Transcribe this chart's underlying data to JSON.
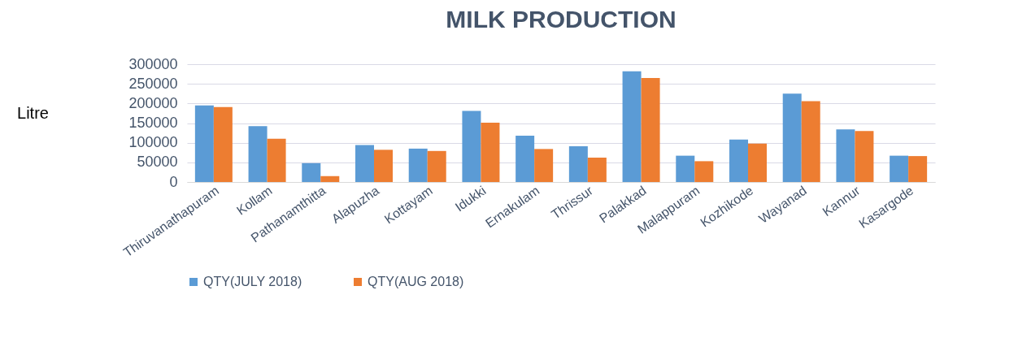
{
  "chart_data": {
    "type": "bar",
    "title": "MILK PRODUCTION",
    "ylabel": "Litre",
    "categories": [
      "Thiruvanathapuram",
      "Kollam",
      "Pathanamthitta",
      "Alapuzha",
      "Kottayam",
      "Idukki",
      "Ernakulam",
      "Thrissur",
      "Palakkad",
      "Malappuram",
      "Kozhikode",
      "Wayanad",
      "Kannur",
      "Kasargode"
    ],
    "series": [
      {
        "name": "QTY(JULY 2018)",
        "color": "#5b9bd5",
        "values": [
          195000,
          142000,
          48000,
          94000,
          85000,
          181000,
          118000,
          91000,
          282000,
          67000,
          108000,
          225000,
          134000,
          67000
        ]
      },
      {
        "name": "QTY(AUG 2018)",
        "color": "#ed7d31",
        "values": [
          191000,
          110000,
          15000,
          82000,
          79000,
          151000,
          84000,
          62000,
          265000,
          53000,
          98000,
          206000,
          130000,
          66000
        ]
      }
    ],
    "ylim": [
      0,
      300000
    ],
    "yticks": [
      0,
      50000,
      100000,
      150000,
      200000,
      250000,
      300000
    ],
    "grid": "y",
    "legend": "bottom"
  }
}
